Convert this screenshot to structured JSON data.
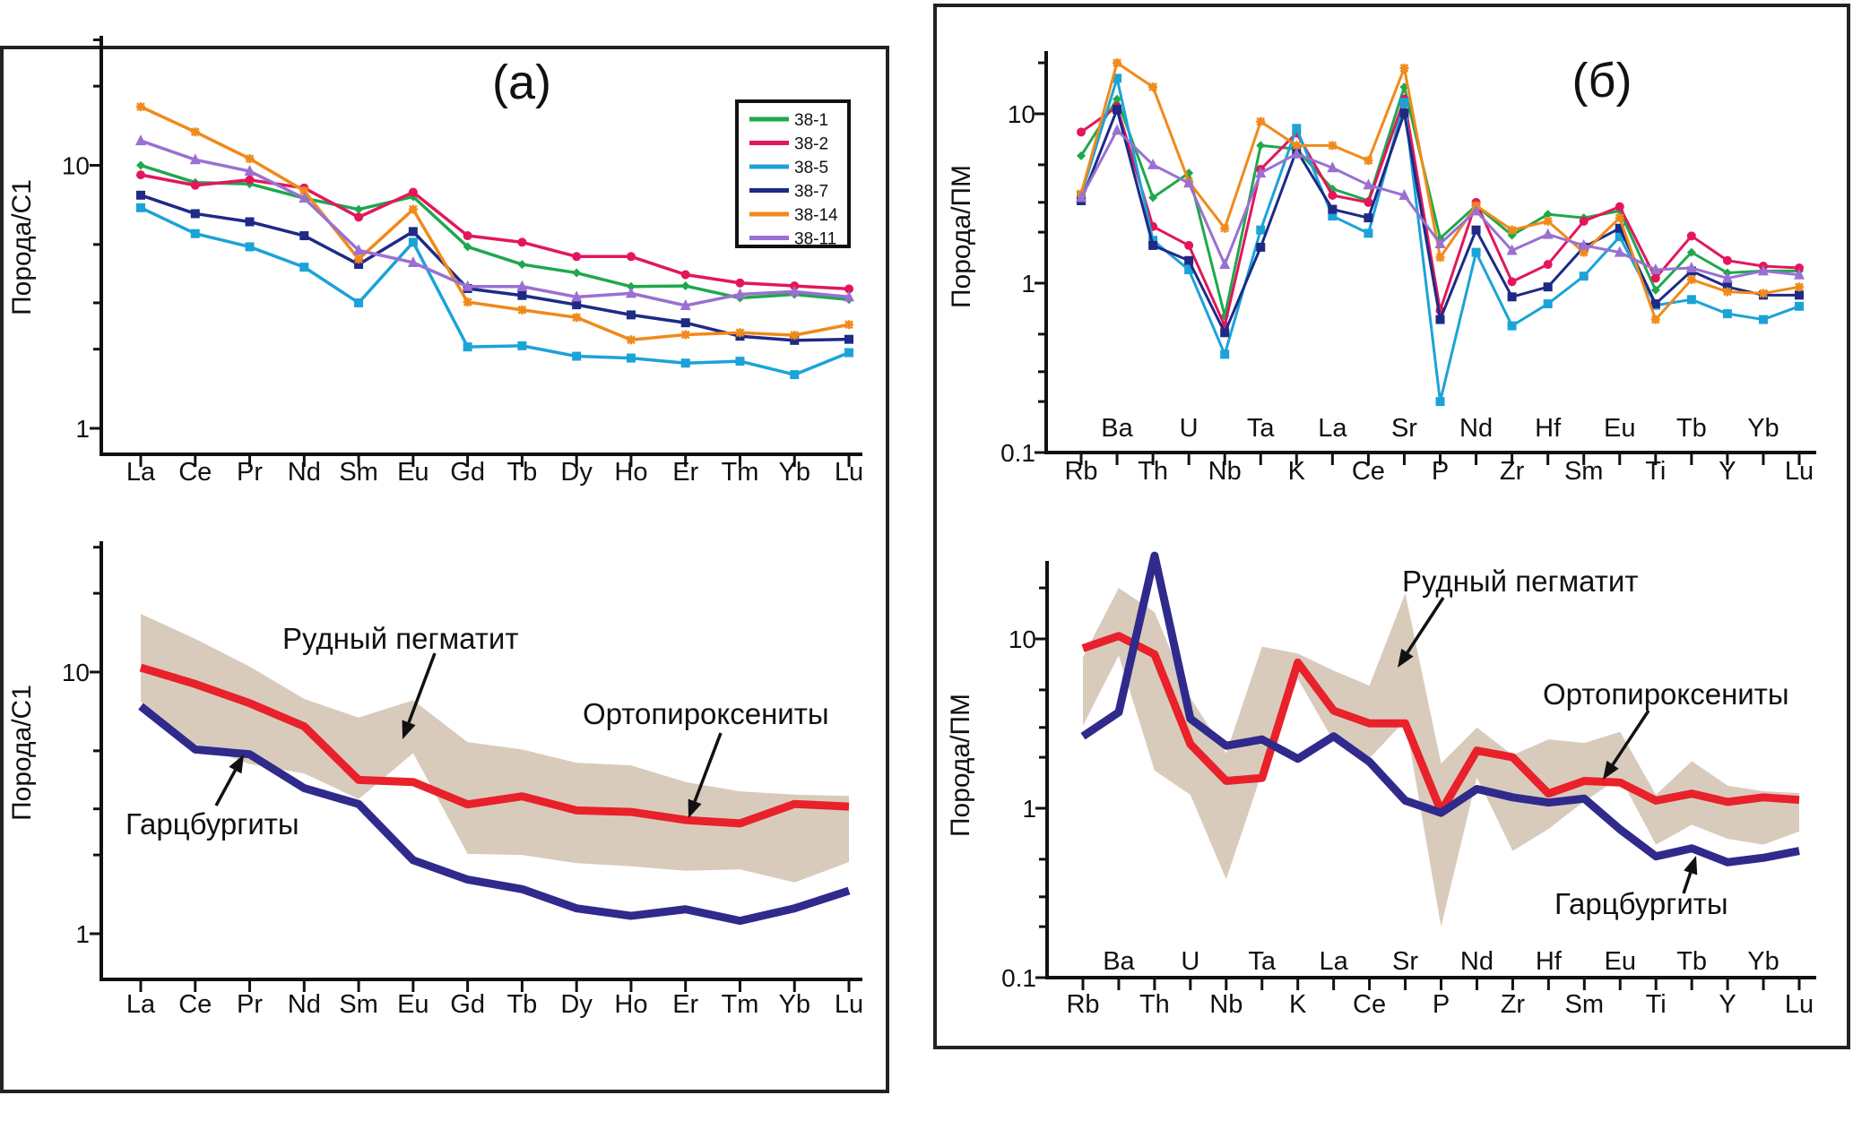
{
  "panels": {
    "a_label": "(a)",
    "b_label": "(б)"
  },
  "colors": {
    "38-1": "#1fa84c",
    "38-2": "#e3165c",
    "38-5": "#1ba3d8",
    "38-7": "#1d2a86",
    "38-14": "#f08a1a",
    "38-11": "#9a70d2",
    "orthopyroxenites": "#e8212b",
    "harzburgites": "#2f2a8c",
    "ore_pegmatite_band": "#d9cbbc"
  },
  "chart_data": [
    {
      "id": "a-top",
      "type": "line",
      "yscale": "log",
      "ylim": [
        0.8,
        30
      ],
      "ylabel": "Порода/С1",
      "yticks": [
        "10",
        "1"
      ],
      "categories": [
        "La",
        "Ce",
        "Pr",
        "Nd",
        "Sm",
        "Eu",
        "Gd",
        "Tb",
        "Dy",
        "Ho",
        "Er",
        "Tm",
        "Yb",
        "Lu"
      ],
      "legend": "top-right",
      "series": [
        {
          "name": "38-1",
          "marker": "diamond",
          "values": [
            10,
            8.6,
            8.5,
            7.5,
            6.8,
            7.6,
            4.9,
            4.2,
            3.9,
            3.46,
            3.48,
            3.13,
            3.23,
            3.09
          ]
        },
        {
          "name": "38-2",
          "marker": "circle",
          "values": [
            9.2,
            8.4,
            8.8,
            8.2,
            6.35,
            7.9,
            5.4,
            5.1,
            4.5,
            4.5,
            3.84,
            3.57,
            3.48,
            3.39
          ]
        },
        {
          "name": "38-5",
          "marker": "square",
          "values": [
            6.9,
            5.5,
            4.9,
            4.1,
            3.0,
            5.1,
            2.04,
            2.06,
            1.88,
            1.85,
            1.77,
            1.8,
            1.6,
            1.94
          ]
        },
        {
          "name": "38-7",
          "marker": "square",
          "values": [
            7.7,
            6.55,
            6.1,
            5.4,
            4.2,
            5.6,
            3.4,
            3.2,
            2.95,
            2.7,
            2.52,
            2.24,
            2.16,
            2.18
          ]
        },
        {
          "name": "38-14",
          "marker": "star",
          "values": [
            16.7,
            13.4,
            10.6,
            8.0,
            4.4,
            6.8,
            3.02,
            2.82,
            2.64,
            2.17,
            2.27,
            2.31,
            2.26,
            2.48
          ]
        },
        {
          "name": "38-11",
          "marker": "triangle",
          "values": [
            12.4,
            10.5,
            9.5,
            7.5,
            4.75,
            4.27,
            3.46,
            3.46,
            3.16,
            3.26,
            2.93,
            3.23,
            3.31,
            3.16
          ]
        }
      ]
    },
    {
      "id": "a-bottom",
      "type": "line",
      "yscale": "log",
      "ylim": [
        0.67,
        30
      ],
      "ylabel": "Порода/С1",
      "yticks": [
        "10",
        "1"
      ],
      "categories": [
        "La",
        "Ce",
        "Pr",
        "Nd",
        "Sm",
        "Eu",
        "Gd",
        "Tb",
        "Dy",
        "Ho",
        "Er",
        "Tm",
        "Yb",
        "Lu"
      ],
      "band": {
        "name": "Рудный пегматит",
        "upper": [
          16.7,
          13.4,
          10.5,
          7.9,
          6.7,
          7.8,
          5.4,
          5.06,
          4.5,
          4.4,
          3.8,
          3.5,
          3.4,
          3.36
        ],
        "lower": [
          7.7,
          5.3,
          4.45,
          4.1,
          3.27,
          4.9,
          2.02,
          2.0,
          1.86,
          1.81,
          1.74,
          1.76,
          1.57,
          1.88
        ]
      },
      "series": [
        {
          "name": "Ортопироксениты",
          "values": [
            10.4,
            9.0,
            7.6,
            6.2,
            3.87,
            3.8,
            3.12,
            3.35,
            2.96,
            2.92,
            2.72,
            2.64,
            3.13,
            3.06
          ]
        },
        {
          "name": "Гарцбургиты",
          "values": [
            7.4,
            5.06,
            4.85,
            3.6,
            3.13,
            1.91,
            1.61,
            1.48,
            1.25,
            1.17,
            1.24,
            1.12,
            1.25,
            1.46
          ]
        }
      ]
    },
    {
      "id": "b-top",
      "type": "line",
      "yscale": "log",
      "ylim": [
        0.1,
        25
      ],
      "ylabel": "Порода/ПМ",
      "yticks": [
        "10",
        "1",
        "0.1"
      ],
      "categories": [
        "Rb",
        "Ba",
        "Th",
        "U",
        "Nb",
        "Ta",
        "K",
        "La",
        "Ce",
        "Sr",
        "P",
        "Nd",
        "Zr",
        "Hf",
        "Sm",
        "Eu",
        "Ti",
        "Tb",
        "Y",
        "Yb",
        "Lu"
      ],
      "series": [
        {
          "name": "38-1",
          "marker": "diamond",
          "values": [
            5.65,
            12.2,
            3.2,
            4.47,
            0.64,
            6.5,
            6.2,
            3.6,
            3.07,
            14.4,
            1.84,
            2.87,
            1.92,
            2.55,
            2.43,
            2.67,
            0.91,
            1.52,
            1.15,
            1.18,
            1.18
          ]
        },
        {
          "name": "38-2",
          "marker": "circle",
          "values": [
            7.8,
            11,
            2.16,
            1.67,
            0.56,
            4.7,
            7.7,
            3.3,
            3.0,
            12.2,
            0.69,
            3.0,
            1.02,
            1.29,
            2.32,
            2.83,
            1.07,
            1.9,
            1.36,
            1.26,
            1.23
          ]
        },
        {
          "name": "38-5",
          "marker": "square",
          "values": [
            3.3,
            16.2,
            1.79,
            1.2,
            0.38,
            2.06,
            8.2,
            2.49,
            1.97,
            11.7,
            0.2,
            1.52,
            0.56,
            0.755,
            1.1,
            1.88,
            0.74,
            0.8,
            0.66,
            0.61,
            0.73
          ]
        },
        {
          "name": "38-7",
          "marker": "square",
          "values": [
            3.07,
            10.6,
            1.67,
            1.36,
            0.51,
            1.63,
            6.1,
            2.73,
            2.43,
            10.1,
            0.61,
            2.06,
            0.83,
            0.95,
            1.63,
            2.11,
            0.755,
            1.18,
            0.95,
            0.85,
            0.85
          ]
        },
        {
          "name": "38-14",
          "marker": "star",
          "values": [
            3.37,
            20,
            14.4,
            3.97,
            2.11,
            9.0,
            6.5,
            6.5,
            5.3,
            18.6,
            1.42,
            2.87,
            2.06,
            2.32,
            1.52,
            2.43,
            0.61,
            1.05,
            0.89,
            0.87,
            0.95
          ]
        },
        {
          "name": "38-11",
          "marker": "triangle",
          "values": [
            3.2,
            8.0,
            5.0,
            3.9,
            1.29,
            4.47,
            5.8,
            4.8,
            3.8,
            3.3,
            1.71,
            2.67,
            1.56,
            1.94,
            1.67,
            1.52,
            1.2,
            1.23,
            1.07,
            1.18,
            1.12
          ]
        }
      ]
    },
    {
      "id": "b-bottom",
      "type": "line",
      "yscale": "log",
      "ylim": [
        0.1,
        29
      ],
      "ylabel": "Порода/ПМ",
      "yticks": [
        "10",
        "1",
        "0.1"
      ],
      "categories": [
        "Rb",
        "Ba",
        "Th",
        "U",
        "Nb",
        "Ta",
        "K",
        "La",
        "Ce",
        "Sr",
        "P",
        "Nd",
        "Zr",
        "Hf",
        "Sm",
        "Eu",
        "Ti",
        "Tb",
        "Y",
        "Yb",
        "Lu"
      ],
      "band": {
        "name": "Рудный пегматит",
        "upper": [
          7.8,
          20,
          14.4,
          4.5,
          2.11,
          9.0,
          8.2,
          6.5,
          5.3,
          18.6,
          1.84,
          3.0,
          2.06,
          2.55,
          2.43,
          2.83,
          1.2,
          1.9,
          1.36,
          1.26,
          1.23
        ],
        "lower": [
          3.07,
          8.0,
          1.67,
          1.2,
          0.38,
          1.63,
          5.8,
          2.49,
          1.97,
          3.3,
          0.2,
          1.52,
          0.56,
          0.755,
          1.1,
          1.52,
          0.61,
          0.8,
          0.66,
          0.61,
          0.73
        ]
      },
      "series": [
        {
          "name": "Ортопироксениты",
          "values": [
            8.8,
            10.4,
            8.1,
            2.39,
            1.45,
            1.51,
            7.25,
            3.77,
            3.17,
            3.17,
            0.96,
            2.19,
            2.0,
            1.22,
            1.45,
            1.42,
            1.11,
            1.22,
            1.09,
            1.16,
            1.12
          ]
        },
        {
          "name": "Гарцбургиты",
          "values": [
            2.66,
            3.69,
            31,
            3.38,
            2.34,
            2.55,
            1.96,
            2.66,
            1.88,
            1.11,
            0.94,
            1.3,
            1.16,
            1.08,
            1.14,
            0.75,
            0.52,
            0.58,
            0.48,
            0.51,
            0.56
          ]
        }
      ]
    }
  ]
}
